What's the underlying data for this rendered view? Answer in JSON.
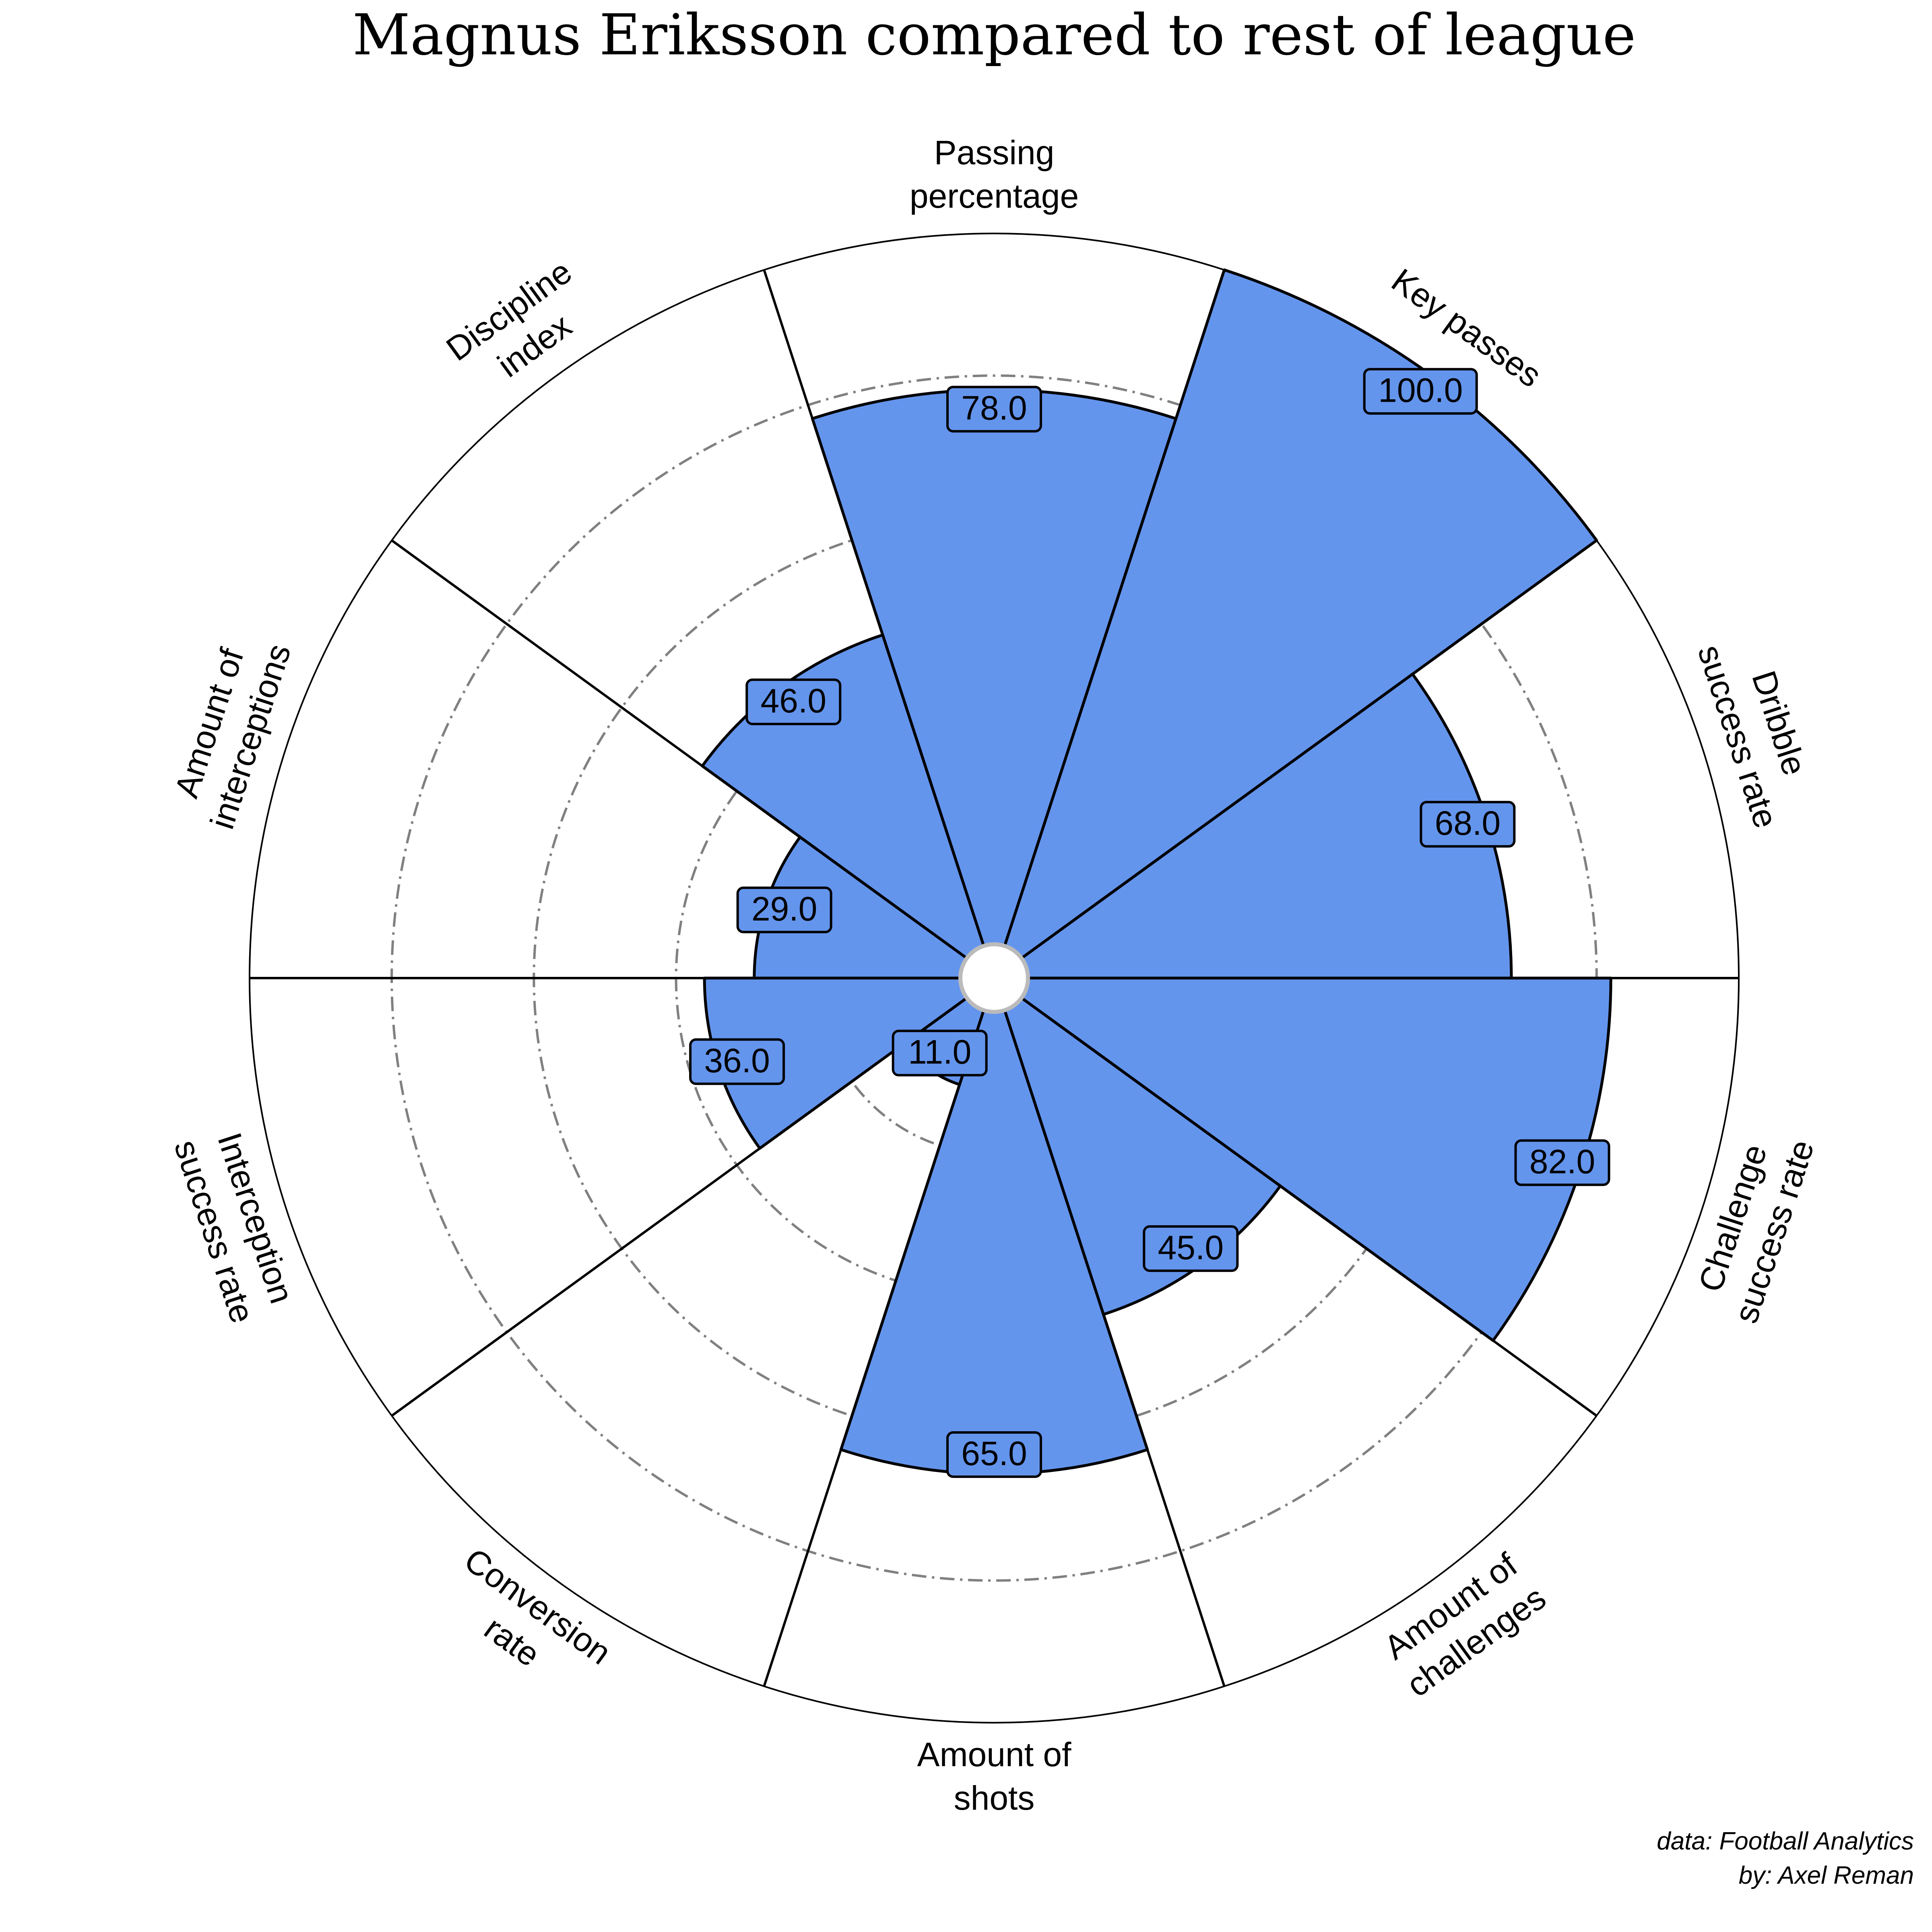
{
  "chart_data": {
    "type": "polar-bar",
    "title": "Magnus Eriksson compared to rest of league",
    "categories": [
      "Passing percentage",
      "Key passes",
      "Dribble success rate",
      "Challenge success rate",
      "Amount of challenges",
      "Amount of shots",
      "Conversion rate",
      "Interception success rate",
      "Amount of interceptions",
      "Discipline index"
    ],
    "label_lines": [
      [
        "Passing",
        "percentage"
      ],
      [
        "Key passes"
      ],
      [
        "Dribble",
        "success rate"
      ],
      [
        "Challenge",
        "success rate"
      ],
      [
        "Amount of",
        "challenges"
      ],
      [
        "Amount of",
        "shots"
      ],
      [
        "Conversion",
        "rate"
      ],
      [
        "Interception",
        "success rate"
      ],
      [
        "Amount of",
        "interceptions"
      ],
      [
        "Discipline",
        "index"
      ]
    ],
    "values": [
      78.0,
      100.0,
      68.0,
      82.0,
      45.0,
      65.0,
      11.0,
      36.0,
      29.0,
      46.0
    ],
    "value_labels": [
      "78.0",
      "100.0",
      "68.0",
      "82.0",
      "45.0",
      "65.0",
      "11.0",
      "36.0",
      "29.0",
      "46.0"
    ],
    "rlim": [
      0,
      100
    ],
    "grid": true,
    "slice_color": "#6495ED",
    "edge_color": "#000000",
    "grid_color": "#808080"
  },
  "credits": {
    "data_source": "data: Football Analytics",
    "author": "by: Axel Reman"
  }
}
